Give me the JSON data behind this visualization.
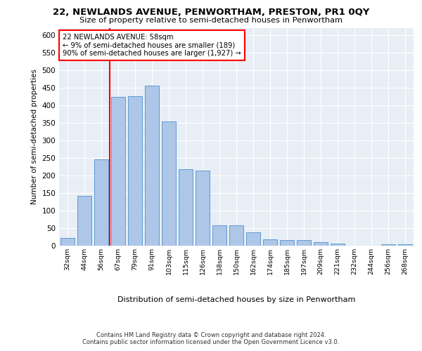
{
  "title1": "22, NEWLANDS AVENUE, PENWORTHAM, PRESTON, PR1 0QY",
  "title2": "Size of property relative to semi-detached houses in Penwortham",
  "xlabel": "Distribution of semi-detached houses by size in Penwortham",
  "ylabel": "Number of semi-detached properties",
  "footer1": "Contains HM Land Registry data © Crown copyright and database right 2024.",
  "footer2": "Contains public sector information licensed under the Open Government Licence v3.0.",
  "categories": [
    "32sqm",
    "44sqm",
    "56sqm",
    "67sqm",
    "79sqm",
    "91sqm",
    "103sqm",
    "115sqm",
    "126sqm",
    "138sqm",
    "150sqm",
    "162sqm",
    "174sqm",
    "185sqm",
    "197sqm",
    "209sqm",
    "221sqm",
    "232sqm",
    "244sqm",
    "256sqm",
    "268sqm"
  ],
  "values": [
    23,
    143,
    247,
    425,
    427,
    457,
    355,
    218,
    215,
    58,
    58,
    39,
    18,
    16,
    16,
    11,
    6,
    0,
    0,
    4,
    5
  ],
  "bar_color": "#aec6e8",
  "bar_edge_color": "#5b9bd5",
  "red_line_x": 2.5,
  "annotation_title": "22 NEWLANDS AVENUE: 58sqm",
  "annotation_line1": "← 9% of semi-detached houses are smaller (189)",
  "annotation_line2": "90% of semi-detached houses are larger (1,927) →",
  "ylim": [
    0,
    620
  ],
  "yticks": [
    0,
    50,
    100,
    150,
    200,
    250,
    300,
    350,
    400,
    450,
    500,
    550,
    600
  ],
  "plot_bg": "#e8eef5"
}
